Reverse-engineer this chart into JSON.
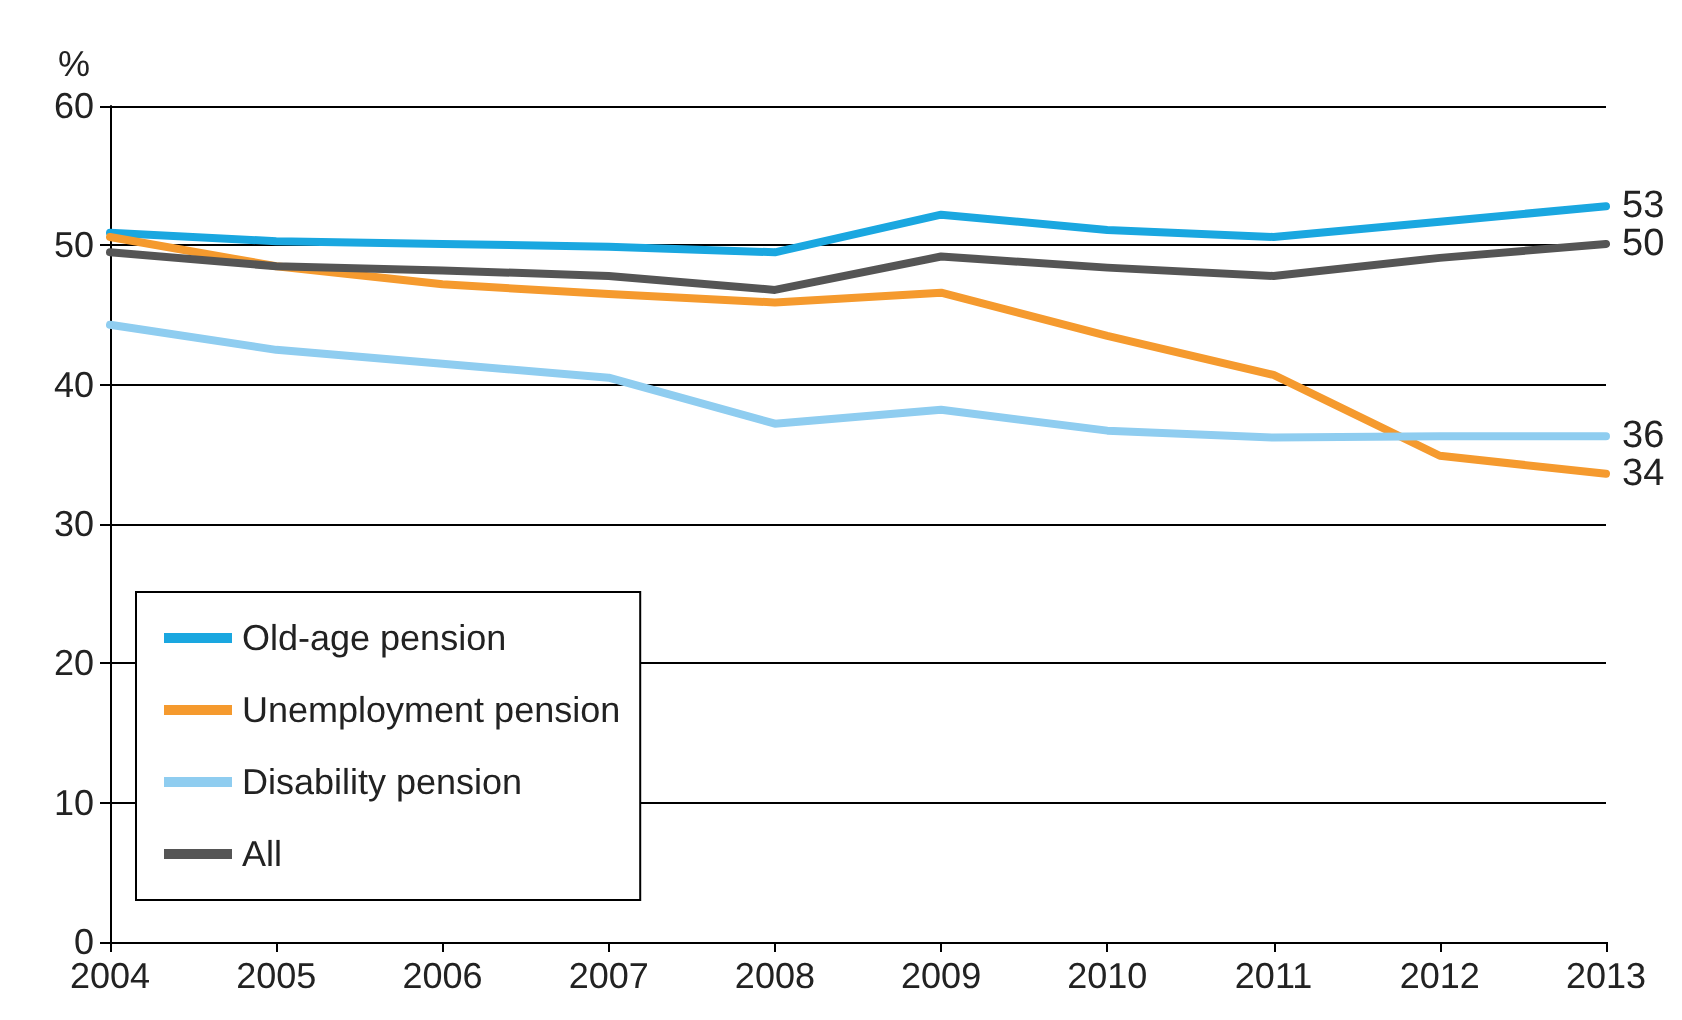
{
  "chart_data": {
    "type": "line",
    "ylabel": "%",
    "x": [
      2004,
      2005,
      2006,
      2007,
      2008,
      2009,
      2010,
      2011,
      2012,
      2013
    ],
    "xlim": [
      2004,
      2013
    ],
    "xticks": [
      2004,
      2005,
      2006,
      2007,
      2008,
      2009,
      2010,
      2011,
      2012,
      2013
    ],
    "ylim": [
      0,
      60
    ],
    "yticks": [
      0,
      10,
      20,
      30,
      40,
      50,
      60
    ],
    "grid": "y",
    "legend": "bottom left",
    "marker": "none",
    "line_style": "solid",
    "series": [
      {
        "name": "Old-age pension",
        "color": "#1aa7e0",
        "values": [
          50.9,
          50.3,
          50.1,
          49.9,
          49.5,
          52.2,
          51.1,
          50.6,
          51.7,
          52.8
        ],
        "value_labels": [
          null,
          null,
          null,
          null,
          null,
          null,
          null,
          null,
          null,
          "53"
        ]
      },
      {
        "name": "Unemployment pension",
        "color": "#f59a2e",
        "values": [
          50.6,
          48.5,
          47.2,
          46.5,
          45.9,
          46.6,
          43.5,
          40.7,
          34.9,
          33.6
        ],
        "value_labels": [
          null,
          null,
          null,
          null,
          null,
          null,
          null,
          null,
          null,
          "34"
        ]
      },
      {
        "name": "Disability pension",
        "color": "#8fcdf0",
        "values": [
          44.3,
          42.5,
          41.5,
          40.5,
          37.2,
          38.2,
          36.7,
          36.2,
          36.3,
          36.3
        ],
        "value_labels": [
          null,
          null,
          null,
          null,
          null,
          null,
          null,
          null,
          null,
          "36"
        ]
      },
      {
        "name": "All",
        "color": "#555555",
        "values": [
          49.5,
          48.5,
          48.2,
          47.8,
          46.8,
          49.2,
          48.4,
          47.8,
          49.1,
          50.1
        ],
        "value_labels": [
          null,
          null,
          null,
          null,
          null,
          null,
          null,
          null,
          null,
          "50"
        ]
      }
    ]
  }
}
